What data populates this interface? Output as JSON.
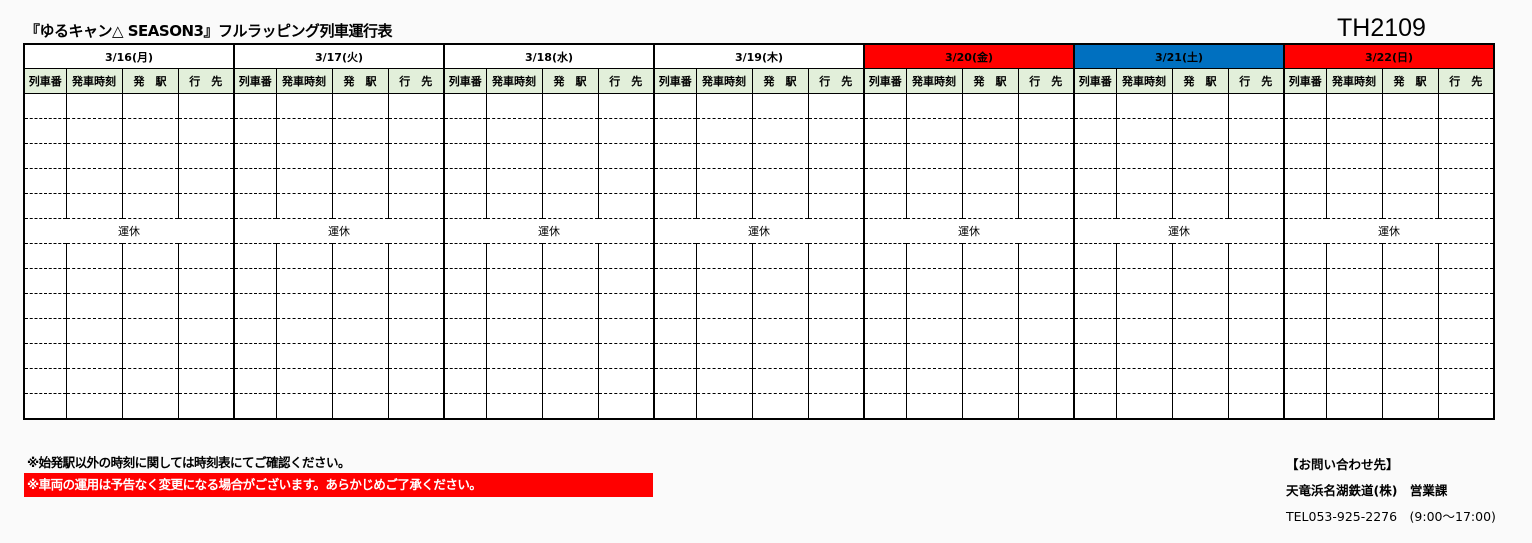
{
  "title": "『ゆるキャン△ SEASON3』フルラッピング列車運行表",
  "train_code": "TH2109",
  "columns": [
    "列車番",
    "発車時刻",
    "発　駅",
    "行　先"
  ],
  "days": [
    {
      "label": "3/16(月)",
      "color": "#ffffff",
      "text_color": "#000000",
      "status": "運休"
    },
    {
      "label": "3/17(火)",
      "color": "#ffffff",
      "text_color": "#000000",
      "status": "運休"
    },
    {
      "label": "3/18(水)",
      "color": "#ffffff",
      "text_color": "#000000",
      "status": "運休"
    },
    {
      "label": "3/19(木)",
      "color": "#ffffff",
      "text_color": "#000000",
      "status": "運休"
    },
    {
      "label": "3/20(金)",
      "color": "#ff0000",
      "text_color": "#000000",
      "status": "運休"
    },
    {
      "label": "3/21(土)",
      "color": "#0070c0",
      "text_color": "#000000",
      "status": "運休"
    },
    {
      "label": "3/22(日)",
      "color": "#ff0000",
      "text_color": "#000000",
      "status": "運休"
    }
  ],
  "notes": {
    "note1": "※始発駅以外の時刻に関しては時刻表にてご確認ください。",
    "note2": "※車両の運用は予告なく変更になる場合がございます。あらかじめご了承ください。"
  },
  "contact": {
    "heading": "【お問い合わせ先】",
    "company": "天竜浜名湖鉄道(株)　営業課",
    "tel": "TEL053-925-2276　(9:00～17:00)"
  }
}
